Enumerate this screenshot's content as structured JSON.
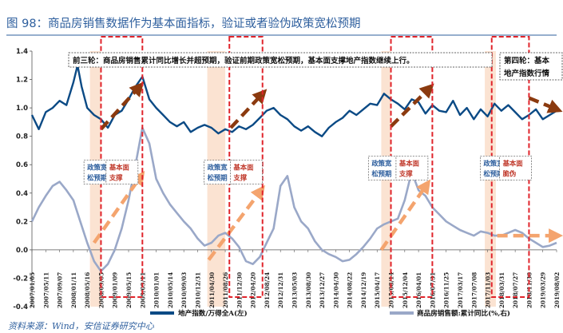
{
  "title": "图 98：商品房销售数据作为基本面指标，验证或者验伪政策宽松预期",
  "source": "资料来源：Wind，安信证券研究中心",
  "colors": {
    "title": "#2e5f9e",
    "land": "#0b4a85",
    "sales": "#9aa8c8",
    "arrow_brown": "#8b3a0f",
    "arrow_orange": "#f4a46e",
    "shade": "#fbe3d2",
    "red": "#e0242b",
    "blue_text": "#2e5f9e"
  },
  "annotations": {
    "top_left": "前三轮：商品房销售累计同比增长并超预期，验证前期政策宽松预期，基本面支撑地产指数继续上行。",
    "top_right_line1": "第四轮：基本",
    "top_right_line2": "地产指数行情"
  },
  "notes": [
    {
      "l1": "政策宽",
      "l2": "松预期",
      "kind": "blue"
    },
    {
      "l1": "基本面",
      "l2": "支撑",
      "kind": "red"
    },
    {
      "l1": "政策宽",
      "l2": "松预期",
      "kind": "blue"
    },
    {
      "l1": "基本面",
      "l2": "支撑",
      "kind": "red"
    },
    {
      "l1": "政策宽",
      "l2": "松预期",
      "kind": "blue"
    },
    {
      "l1": "基本面",
      "l2": "支撑",
      "kind": "red"
    },
    {
      "l1": "政策宽",
      "l2": "松预期",
      "kind": "blue"
    },
    {
      "l1": "基本面",
      "l2": "脆伪",
      "kind": "red"
    }
  ],
  "chart_data": {
    "type": "line",
    "y_ticks": [
      "1.4",
      "1.2",
      "1.0",
      "0.8",
      "0.6",
      "0.4",
      "0.2",
      "0.0",
      "-0.2",
      "-0.4"
    ],
    "ylim": [
      -0.4,
      1.4
    ],
    "x_ticks": [
      "2007/01/05",
      "2007/05/11",
      "2007/09/07",
      "2008/01/11",
      "2008/05/16",
      "2008/09/05",
      "2009/01/09",
      "2009/05/15",
      "2009/09/11",
      "2010/01/01",
      "2010/05/14",
      "2010/09/03",
      "2010/12/31",
      "2011/04/30",
      "2011/08/26",
      "2011/12/30",
      "2012/04/20",
      "2012/08/24",
      "2012/12/31",
      "2013/05/03",
      "2013/08/30",
      "2013/12/27",
      "2014/04/30",
      "2014/08/22",
      "2014/12/19",
      "2015/04/17",
      "2015/08/14",
      "2015/12/04",
      "2016/04/01",
      "2016/07/31",
      "2016/11/25",
      "2017/03/17",
      "2017/07/08",
      "2017/11/03",
      "2018/03/31",
      "2018/07/27",
      "2018/11/30",
      "2019/03/29",
      "2019/08/02"
    ],
    "series": [
      {
        "name": "地产指数/万得全A(左)",
        "x": [
          0,
          0.5,
          1,
          1.5,
          2,
          2.5,
          3,
          3.3,
          3.6,
          4,
          4.5,
          5,
          5.5,
          6,
          6.5,
          7,
          7.5,
          8,
          8.5,
          9,
          9.5,
          10,
          10.5,
          11,
          11.5,
          12,
          12.5,
          13,
          13.5,
          14,
          14.5,
          15,
          15.5,
          16,
          16.5,
          17,
          17.5,
          18,
          18.5,
          19,
          19.5,
          20,
          20.5,
          21,
          21.5,
          22,
          22.5,
          23,
          23.5,
          24,
          24.5,
          25,
          25.5,
          26,
          26.5,
          27,
          27.5,
          28,
          28.5,
          29,
          29.5,
          30,
          30.5,
          31,
          31.5,
          32,
          32.5,
          33,
          33.5,
          34,
          34.5,
          35,
          35.5,
          36,
          36.5,
          37,
          37.5,
          38
        ],
        "values": [
          0.95,
          0.85,
          0.97,
          1.0,
          1.05,
          1.02,
          1.18,
          1.3,
          1.15,
          1.0,
          0.95,
          0.92,
          0.86,
          0.95,
          0.98,
          1.06,
          1.15,
          1.22,
          1.06,
          1.0,
          0.95,
          0.9,
          0.87,
          0.9,
          0.83,
          0.86,
          0.88,
          0.86,
          0.82,
          0.85,
          0.83,
          0.87,
          0.85,
          0.88,
          0.93,
          0.98,
          1.0,
          0.95,
          0.92,
          0.87,
          0.84,
          0.87,
          0.83,
          0.8,
          0.86,
          0.9,
          0.93,
          0.98,
          0.95,
          0.99,
          1.03,
          1.02,
          1.1,
          1.06,
          1.03,
          0.99,
          1.06,
          1.04,
          0.96,
          1.02,
          0.98,
          0.97,
          1.05,
          0.95,
          1.0,
          0.92,
          0.99,
          0.94,
          1.03,
          0.98,
          1.02,
          0.97,
          0.92,
          0.95,
          0.99,
          0.92,
          0.95,
          0.98
        ]
      },
      {
        "name": "商品房销售额:累计同比(%,右)",
        "x": [
          0,
          0.5,
          1,
          1.5,
          2,
          2.5,
          3,
          3.5,
          4,
          4.5,
          5,
          5.5,
          6,
          6.5,
          7,
          7.5,
          8,
          8.5,
          9,
          9.5,
          10,
          10.5,
          11,
          11.5,
          12,
          12.5,
          13,
          13.5,
          14,
          14.5,
          15,
          15.5,
          16,
          16.5,
          17,
          17.5,
          18,
          18.5,
          19,
          19.5,
          20,
          20.5,
          21,
          21.5,
          22,
          22.5,
          23,
          23.5,
          24,
          24.5,
          25,
          25.5,
          26,
          26.5,
          27,
          27.5,
          28,
          28.5,
          29,
          29.5,
          30,
          30.5,
          31,
          31.5,
          32,
          32.5,
          33,
          33.5,
          34,
          34.5,
          35,
          35.5,
          36,
          36.5,
          37,
          37.5,
          38
        ],
        "values": [
          0.2,
          0.3,
          0.38,
          0.45,
          0.48,
          0.42,
          0.35,
          0.2,
          0.05,
          -0.08,
          -0.15,
          -0.1,
          0.0,
          0.15,
          0.35,
          0.6,
          0.86,
          0.75,
          0.5,
          0.4,
          0.32,
          0.26,
          0.2,
          0.15,
          0.08,
          0.03,
          0.05,
          0.1,
          0.12,
          0.08,
          0.02,
          -0.08,
          -0.1,
          -0.05,
          0.05,
          0.15,
          0.45,
          0.52,
          0.3,
          0.2,
          0.15,
          0.06,
          0.0,
          -0.03,
          -0.05,
          -0.08,
          -0.07,
          -0.03,
          0.02,
          0.08,
          0.15,
          0.18,
          0.2,
          0.22,
          0.35,
          0.55,
          0.42,
          0.38,
          0.3,
          0.25,
          0.2,
          0.17,
          0.14,
          0.12,
          0.1,
          0.13,
          0.12,
          0.1,
          0.1,
          0.12,
          0.14,
          0.12,
          0.08,
          0.05,
          0.02,
          0.03,
          0.05
        ]
      }
    ],
    "shaded_regions": [
      [
        4.2,
        5.0
      ],
      [
        12.7,
        14.0
      ],
      [
        25.3,
        26.0
      ],
      [
        32.8,
        33.6
      ]
    ],
    "dashed_boxes": [
      [
        5.0,
        8.0
      ],
      [
        14.3,
        16.7
      ],
      [
        26.0,
        29.0
      ],
      [
        33.3,
        36.0
      ]
    ],
    "legend": [
      "地产指数/万得全A(左)",
      "商品房销售额:累计同比(%,右)"
    ]
  }
}
